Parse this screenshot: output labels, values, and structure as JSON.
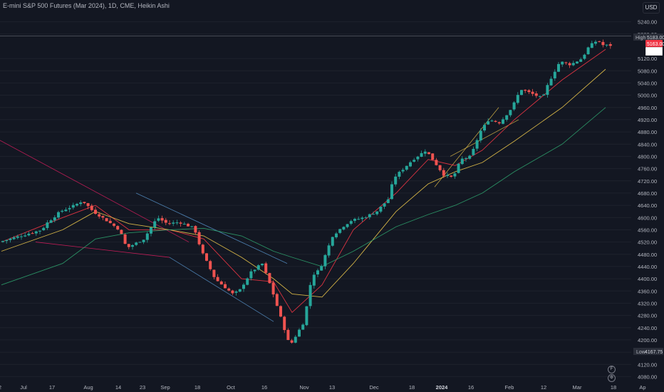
{
  "header": {
    "title": "E-mini S&P 500 Futures (Mar 2024), 1D, CME, Heikin Ashi",
    "currency_button": "USD"
  },
  "price_axis": {
    "labels": [
      "5240.00",
      "5200.00",
      "5120.00",
      "5080.00",
      "5040.00",
      "5000.00",
      "4960.00",
      "4920.00",
      "4880.00",
      "4840.00",
      "4800.00",
      "4760.00",
      "4720.00",
      "4680.00",
      "4640.00",
      "4600.00",
      "4560.00",
      "4520.00",
      "4480.00",
      "4440.00",
      "4400.00",
      "4360.00",
      "4320.00",
      "4280.00",
      "4240.00",
      "4200.00",
      "4160.00",
      "4120.00",
      "4080.00"
    ],
    "high_label": "High",
    "high_value": "5183.00",
    "low_label": "Low",
    "low_value": "4167.75",
    "last_price_badge": "5163.00",
    "icons": [
      "f-icon",
      "settings-icon"
    ]
  },
  "time_axis": {
    "labels": [
      {
        "text": "2",
        "bold": false
      },
      {
        "text": "Jul",
        "bold": false
      },
      {
        "text": "17",
        "bold": false
      },
      {
        "text": "Aug",
        "bold": false
      },
      {
        "text": "14",
        "bold": false
      },
      {
        "text": "23",
        "bold": false
      },
      {
        "text": "Sep",
        "bold": false
      },
      {
        "text": "18",
        "bold": false
      },
      {
        "text": "Oct",
        "bold": false
      },
      {
        "text": "16",
        "bold": false
      },
      {
        "text": "Nov",
        "bold": false
      },
      {
        "text": "13",
        "bold": false
      },
      {
        "text": "Dec",
        "bold": false
      },
      {
        "text": "18",
        "bold": false
      },
      {
        "text": "2024",
        "bold": true
      },
      {
        "text": "16",
        "bold": false
      },
      {
        "text": "Feb",
        "bold": false
      },
      {
        "text": "12",
        "bold": false
      },
      {
        "text": "Mar",
        "bold": false
      },
      {
        "text": "18",
        "bold": false
      },
      {
        "text": "Ap",
        "bold": false
      }
    ]
  },
  "colors": {
    "background": "#131722",
    "up": "#26a69a",
    "down": "#ef5350",
    "ma_fast": "#f23645",
    "ma_mid": "#e8c34a",
    "ma_slow": "#2e9e6b",
    "trendline_pink": "#e91e63",
    "trendline_blue": "#5b9bd5",
    "trendline_yellow": "#e8c34a",
    "last_price": "#f23645",
    "text": "#b2b5be"
  },
  "chart_data": {
    "type": "candlestick",
    "style": "Heikin Ashi",
    "symbol": "E-mini S&P 500 Futures (Mar 2024)",
    "interval": "1D",
    "exchange": "CME",
    "y_axis": {
      "min": 4060,
      "max": 5260,
      "unit": "USD",
      "position": "right"
    },
    "x_range": [
      "Jun 2023",
      "Apr 2024"
    ],
    "high": 5183.0,
    "low": 4167.75,
    "last_price": 5163.0,
    "path_description": "Uptrend June-July to ~4640, pullback in August to ~4480, rebound to ~4600 in early September, decline through October to ~4180 low (Oct 27), strong rally November-December to ~4820, small dip early January to ~4720, steady climb Jan-Mar to ~5180 high",
    "price_path": [
      [
        "Jun 30",
        4520
      ],
      [
        "Jul 10",
        4560
      ],
      [
        "Jul 14",
        4580
      ],
      [
        "Jul 20",
        4620
      ],
      [
        "Jul 27",
        4640
      ],
      [
        "Jul 31",
        4655
      ],
      [
        "Aug 4",
        4620
      ],
      [
        "Aug 10",
        4595
      ],
      [
        "Aug 15",
        4560
      ],
      [
        "Aug 18",
        4500
      ],
      [
        "Aug 25",
        4530
      ],
      [
        "Aug 31",
        4600
      ],
      [
        "Sep 5",
        4580
      ],
      [
        "Sep 12",
        4585
      ],
      [
        "Sep 18",
        4565
      ],
      [
        "Sep 21",
        4490
      ],
      [
        "Sep 27",
        4400
      ],
      [
        "Oct 3",
        4350
      ],
      [
        "Oct 6",
        4360
      ],
      [
        "Oct 12",
        4420
      ],
      [
        "Oct 16",
        4450
      ],
      [
        "Oct 20",
        4370
      ],
      [
        "Oct 27",
        4180
      ],
      [
        "Nov 2",
        4260
      ],
      [
        "Nov 6",
        4410
      ],
      [
        "Nov 10",
        4430
      ],
      [
        "Nov 14",
        4540
      ],
      [
        "Nov 20",
        4570
      ],
      [
        "Nov 24",
        4590
      ],
      [
        "Nov 30",
        4600
      ],
      [
        "Dec 5",
        4620
      ],
      [
        "Dec 11",
        4660
      ],
      [
        "Dec 14",
        4730
      ],
      [
        "Dec 20",
        4790
      ],
      [
        "Dec 27",
        4820
      ],
      [
        "Jan 3",
        4740
      ],
      [
        "Jan 8",
        4730
      ],
      [
        "Jan 12",
        4790
      ],
      [
        "Jan 17",
        4800
      ],
      [
        "Jan 22",
        4880
      ],
      [
        "Jan 26",
        4920
      ],
      [
        "Jan 31",
        4910
      ],
      [
        "Feb 5",
        4960
      ],
      [
        "Feb 9",
        5020
      ],
      [
        "Feb 13",
        4990
      ],
      [
        "Feb 16",
        5040
      ],
      [
        "Feb 22",
        5110
      ],
      [
        "Feb 28",
        5100
      ],
      [
        "Mar 5",
        5120
      ],
      [
        "Mar 8",
        5160
      ],
      [
        "Mar 12",
        5180
      ],
      [
        "Mar 14",
        5163
      ]
    ],
    "moving_averages": [
      {
        "name": "",
        "color": "fast-red",
        "points": [
          [
            "Jun 30",
            4520
          ],
          [
            "Jul 20",
            4600
          ],
          [
            "Aug 4",
            4640
          ],
          [
            "Aug 18",
            4560
          ],
          [
            "Sep 5",
            4560
          ],
          [
            "Sep 21",
            4530
          ],
          [
            "Oct 6",
            4400
          ],
          [
            "Oct 20",
            4390
          ],
          [
            "Oct 27",
            4290
          ],
          [
            "Nov 10",
            4380
          ],
          [
            "Nov 24",
            4560
          ],
          [
            "Dec 14",
            4680
          ],
          [
            "Dec 27",
            4790
          ],
          [
            "Jan 8",
            4770
          ],
          [
            "Jan 22",
            4820
          ],
          [
            "Feb 5",
            4920
          ],
          [
            "Feb 22",
            5050
          ],
          [
            "Mar 14",
            5150
          ]
        ]
      },
      {
        "name": "",
        "color": "mid-yellow",
        "points": [
          [
            "Jun 30",
            4490
          ],
          [
            "Jul 20",
            4560
          ],
          [
            "Aug 4",
            4620
          ],
          [
            "Aug 18",
            4580
          ],
          [
            "Sep 5",
            4560
          ],
          [
            "Sep 21",
            4540
          ],
          [
            "Oct 6",
            4470
          ],
          [
            "Oct 20",
            4400
          ],
          [
            "Oct 27",
            4350
          ],
          [
            "Nov 10",
            4340
          ],
          [
            "Nov 24",
            4450
          ],
          [
            "Dec 14",
            4620
          ],
          [
            "Dec 27",
            4710
          ],
          [
            "Jan 8",
            4750
          ],
          [
            "Jan 22",
            4780
          ],
          [
            "Feb 5",
            4850
          ],
          [
            "Feb 22",
            4960
          ],
          [
            "Mar 14",
            5085
          ]
        ]
      },
      {
        "name": "",
        "color": "slow-green",
        "points": [
          [
            "Jun 30",
            4380
          ],
          [
            "Jul 20",
            4450
          ],
          [
            "Aug 4",
            4530
          ],
          [
            "Aug 18",
            4550
          ],
          [
            "Sep 5",
            4560
          ],
          [
            "Sep 21",
            4565
          ],
          [
            "Oct 6",
            4540
          ],
          [
            "Oct 20",
            4490
          ],
          [
            "Oct 27",
            4470
          ],
          [
            "Nov 10",
            4440
          ],
          [
            "Nov 24",
            4490
          ],
          [
            "Dec 14",
            4570
          ],
          [
            "Dec 27",
            4610
          ],
          [
            "Jan 8",
            4640
          ],
          [
            "Jan 22",
            4680
          ],
          [
            "Feb 5",
            4750
          ],
          [
            "Feb 22",
            4840
          ],
          [
            "Mar 14",
            4960
          ]
        ]
      }
    ],
    "drawings": [
      {
        "type": "trendline",
        "color": "pink",
        "from": [
          "Jun 22",
          4890
        ],
        "to": [
          "Sep 15",
          4520
        ]
      },
      {
        "type": "trendline",
        "color": "pink",
        "from": [
          "Jul 5",
          4520
        ],
        "to": [
          "Sep 5",
          4470
        ]
      },
      {
        "type": "trendline",
        "color": "blue",
        "from": [
          "Aug 22",
          4680
        ],
        "to": [
          "Oct 25",
          4450
        ]
      },
      {
        "type": "trendline",
        "color": "blue",
        "from": [
          "Sep 5",
          4470
        ],
        "to": [
          "Oct 20",
          4260
        ]
      },
      {
        "type": "trendline",
        "color": "yellow",
        "from": [
          "Dec 30",
          4700
        ],
        "to": [
          "Jan 30",
          4960
        ]
      },
      {
        "type": "trendline",
        "color": "yellow",
        "from": [
          "Jan 5",
          4800
        ],
        "to": [
          "Feb 7",
          4920
        ]
      }
    ]
  }
}
